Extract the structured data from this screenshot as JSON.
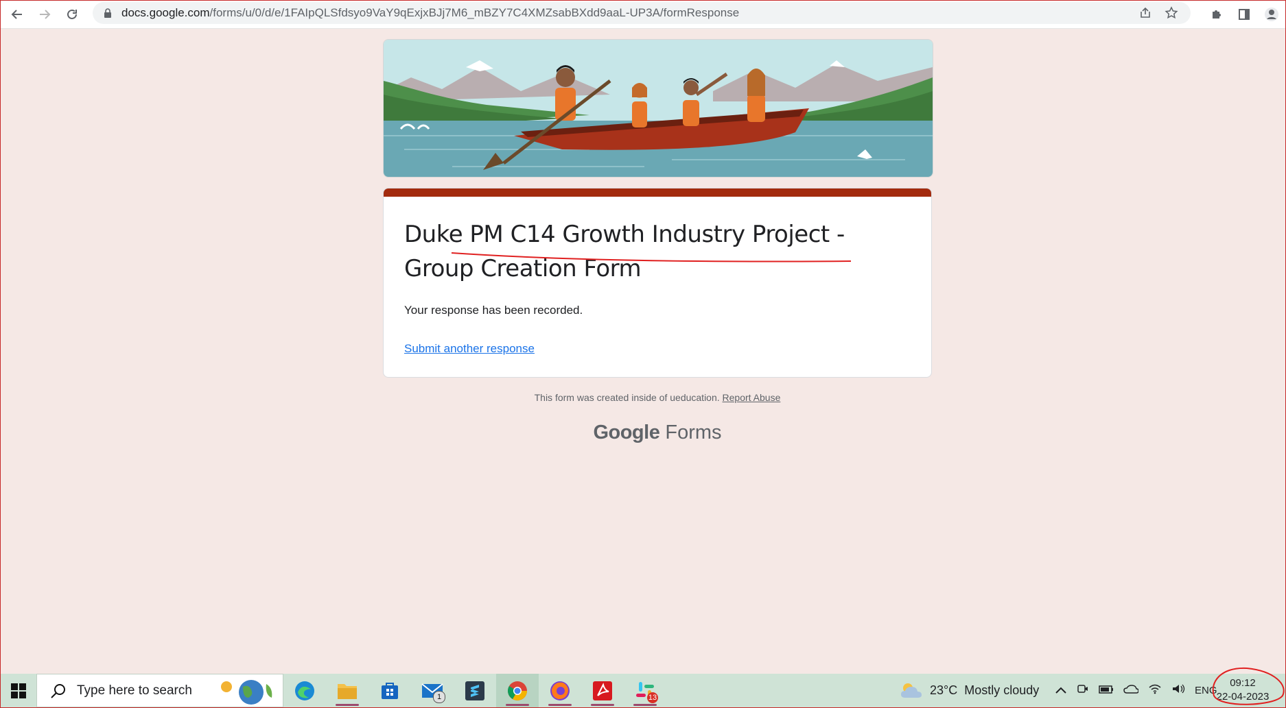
{
  "browser": {
    "url_host": "docs.google.com",
    "url_path": "/forms/u/0/d/e/1FAIpQLSfdsyo9VaY9qExjxBJj7M6_mBZY7C4XMZsabBXdd9aaL-UP3A/formResponse"
  },
  "form": {
    "title": "Duke PM C14 Growth Industry Project - Group Creation Form",
    "confirmation": "Your response has been recorded.",
    "submit_another": "Submit another response",
    "accent_color": "#a32b0e"
  },
  "footer": {
    "note": "This form was created inside of ueducation.",
    "report_abuse": "Report Abuse",
    "brand_google": "Google",
    "brand_forms": "Forms"
  },
  "taskbar": {
    "search_placeholder": "Type here to search",
    "mail_badge": "1",
    "slack_badge": "13",
    "weather_temp": "23°C",
    "weather_desc": "Mostly cloudy",
    "language": "ENG",
    "time": "09:12",
    "date": "22-04-2023"
  }
}
